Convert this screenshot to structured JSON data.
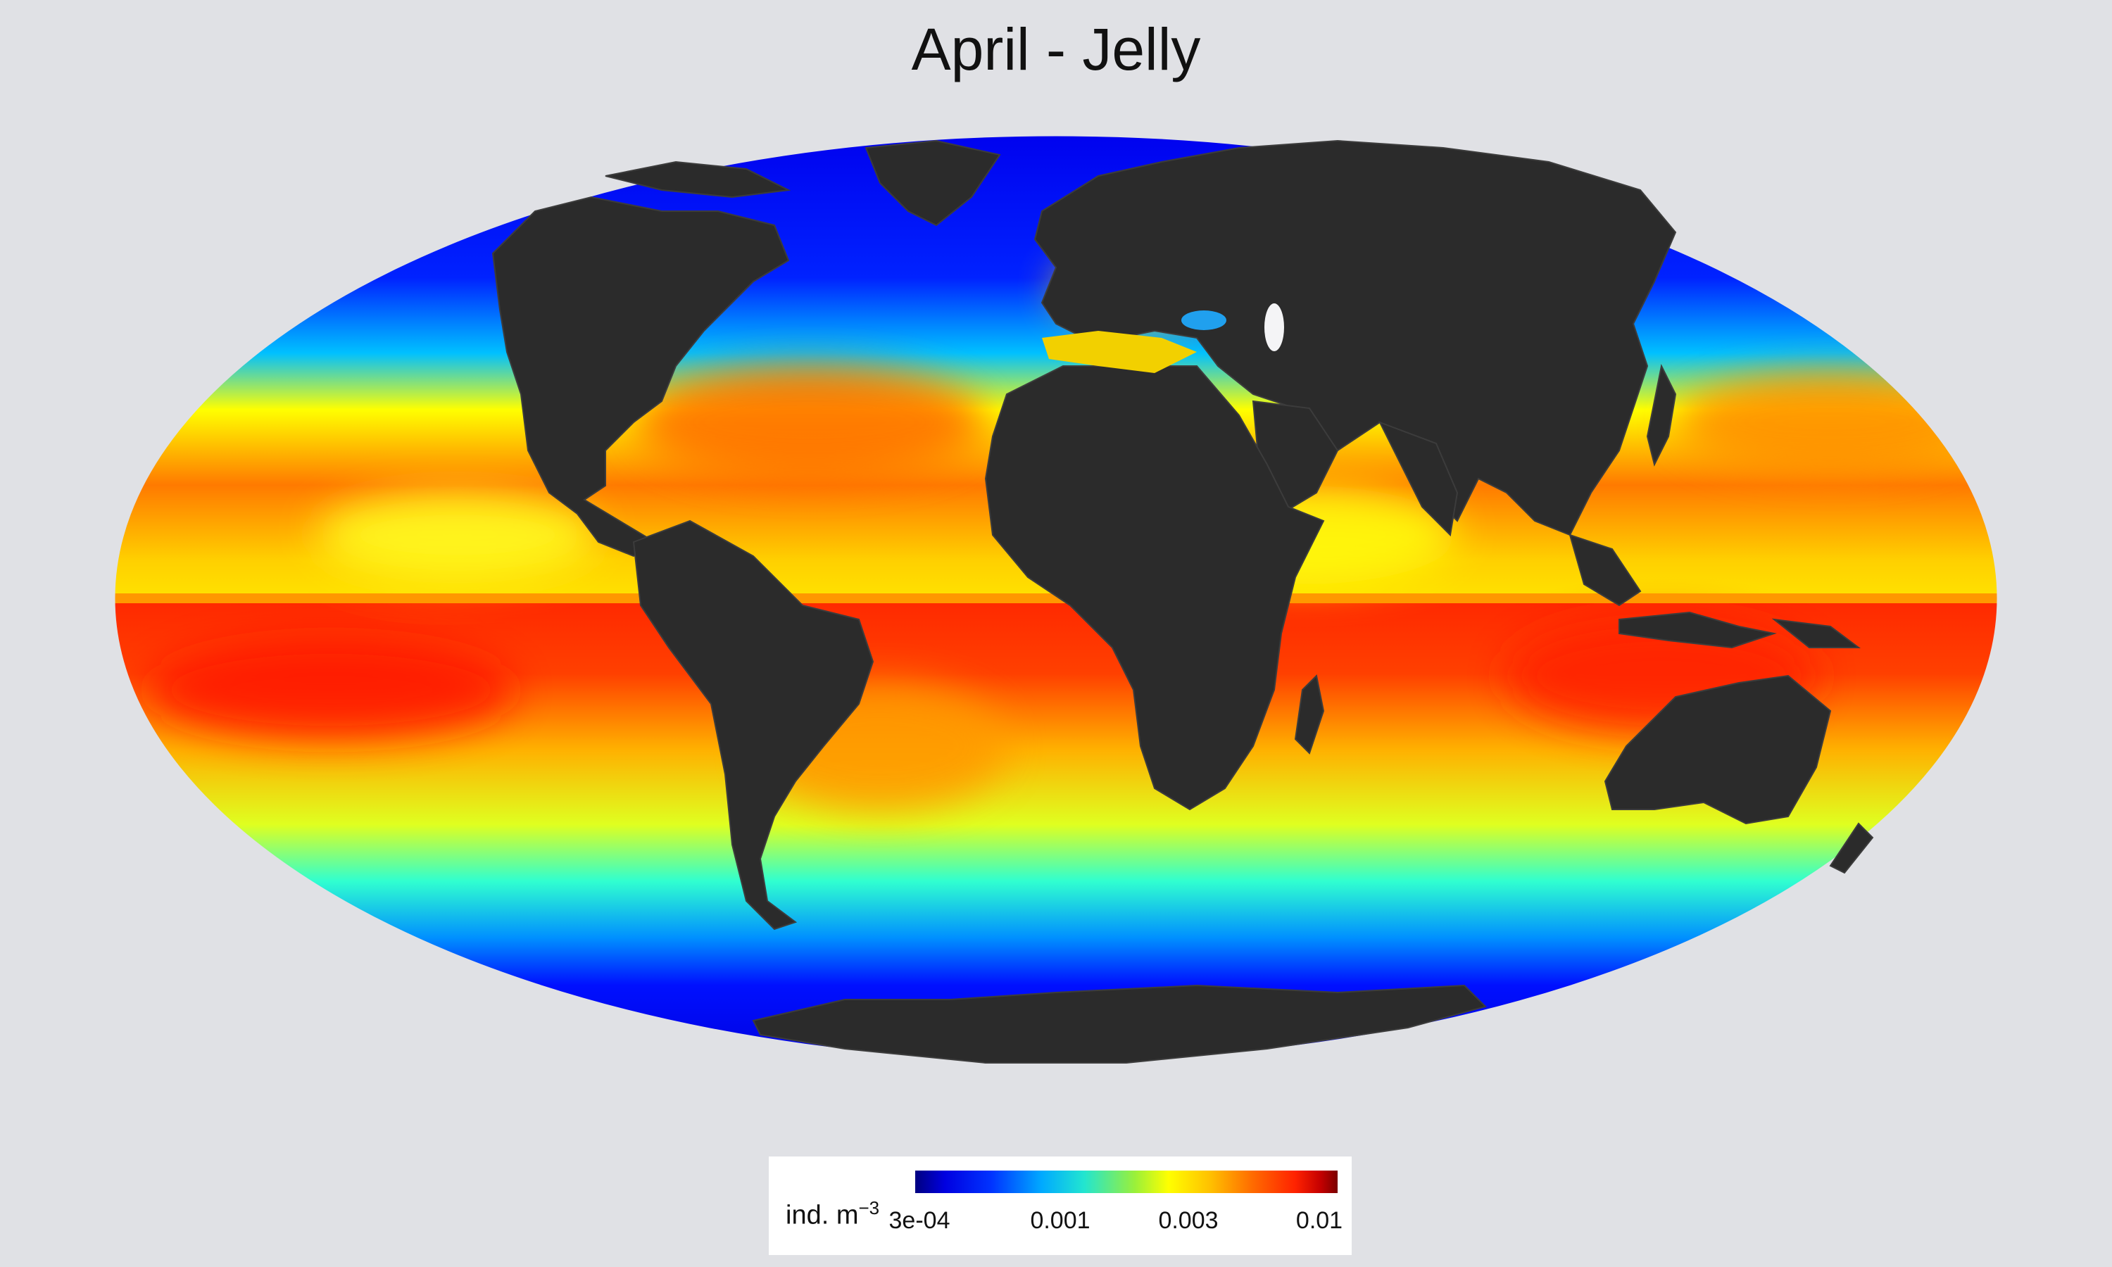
{
  "title": "April - Jelly",
  "map": {
    "projection": "mollweide",
    "variable": "jelly abundance",
    "ocean_palette": "jet",
    "land_color": "#2a2a2a",
    "background_color": "#e0e1e5"
  },
  "legend": {
    "unit_text": "ind. m",
    "unit_exponent": "−3",
    "ticks": [
      "3e-04",
      "0.001",
      "0.003",
      "0.01"
    ],
    "colors": [
      "#000080",
      "#0000ff",
      "#00aaff",
      "#22e5d0",
      "#ffff00",
      "#ff8000",
      "#ff0000",
      "#7a0000"
    ]
  }
}
